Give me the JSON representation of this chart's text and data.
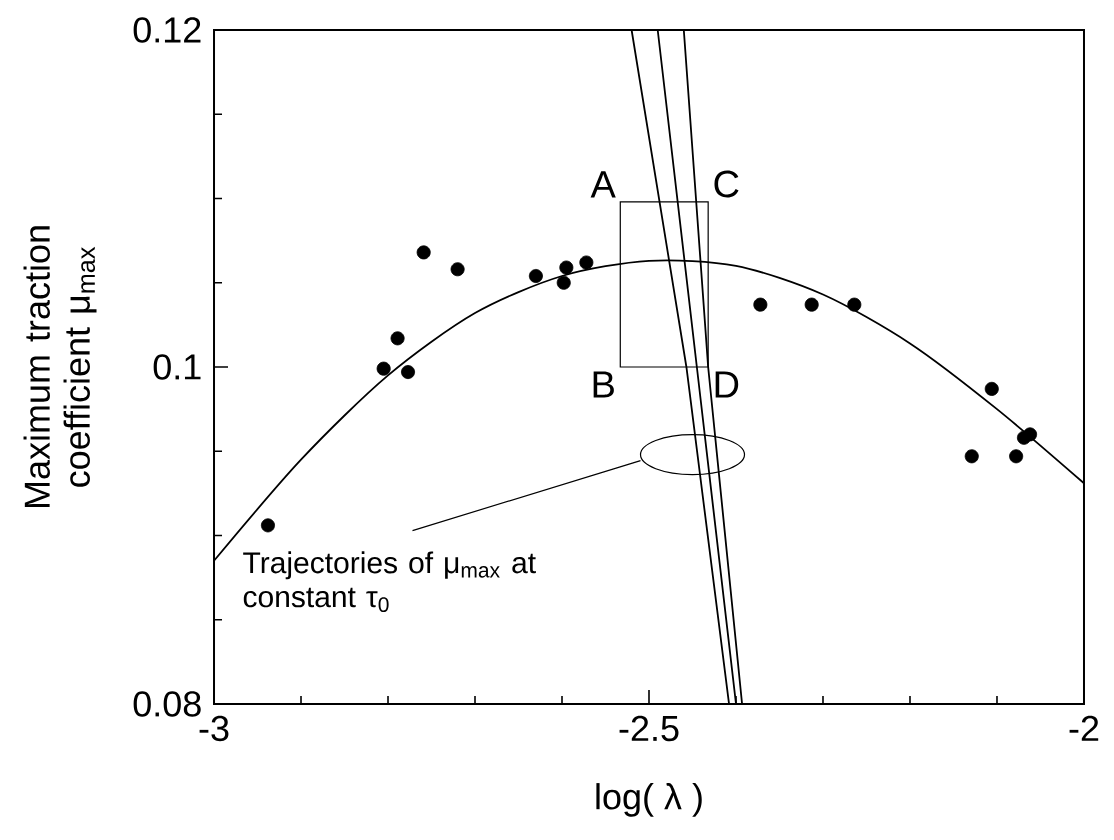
{
  "chart_data": {
    "type": "scatter",
    "xlabel": "log( λ )",
    "ylabel": "Maximum traction coefficient μ$_{max}$",
    "xlim": [
      -3,
      -2
    ],
    "ylim": [
      0.08,
      0.12
    ],
    "xticks": [
      -3,
      -2.5,
      -2
    ],
    "yticks": [
      0.08,
      0.1,
      0.12
    ],
    "grid": false,
    "series": [
      {
        "marker": "circle",
        "color": "#000000",
        "x": [
          -2.938,
          -2.759,
          -2.72,
          -2.63,
          -2.595,
          -2.598,
          -2.572,
          -2.789,
          -2.805,
          -2.777,
          -2.372,
          -2.313,
          -2.264,
          -2.106,
          -2.069,
          -2.062,
          -2.078,
          -2.129
        ],
        "values": [
          0.0906,
          0.1068,
          0.1058,
          0.1054,
          0.1059,
          0.105,
          0.1062,
          0.1017,
          0.0999,
          0.0997,
          0.1037,
          0.1037,
          0.1037,
          0.0987,
          0.0958,
          0.096,
          0.0947,
          0.0947
        ]
      },
      {
        "type": "line",
        "color": "#000000",
        "x": [
          -3,
          -2.9,
          -2.8,
          -2.7,
          -2.6,
          -2.5,
          -2.4,
          -2.3,
          -2.2,
          -2.1,
          -2.0
        ],
        "values": [
          0.0885,
          0.0945,
          0.0995,
          0.1032,
          0.1054,
          0.1063,
          0.106,
          0.1043,
          0.1014,
          0.0975,
          0.0931
        ]
      },
      {
        "type": "line",
        "color": "#000000",
        "x": [
          -2.52,
          -2.457,
          -2.408
        ],
        "values": [
          0.12,
          0.1,
          0.08
        ]
      },
      {
        "type": "line",
        "color": "#000000",
        "x": [
          -2.49,
          -2.445,
          -2.4
        ],
        "values": [
          0.12,
          0.1,
          0.08
        ]
      },
      {
        "type": "line",
        "color": "#000000",
        "x": [
          -2.46,
          -2.432,
          -2.393
        ],
        "values": [
          0.12,
          0.1,
          0.08
        ]
      }
    ],
    "annotations": [
      "A",
      "B",
      "C",
      "D",
      "Trajectories of μ$_{max}$ at constant τ$_{0}$"
    ]
  }
}
